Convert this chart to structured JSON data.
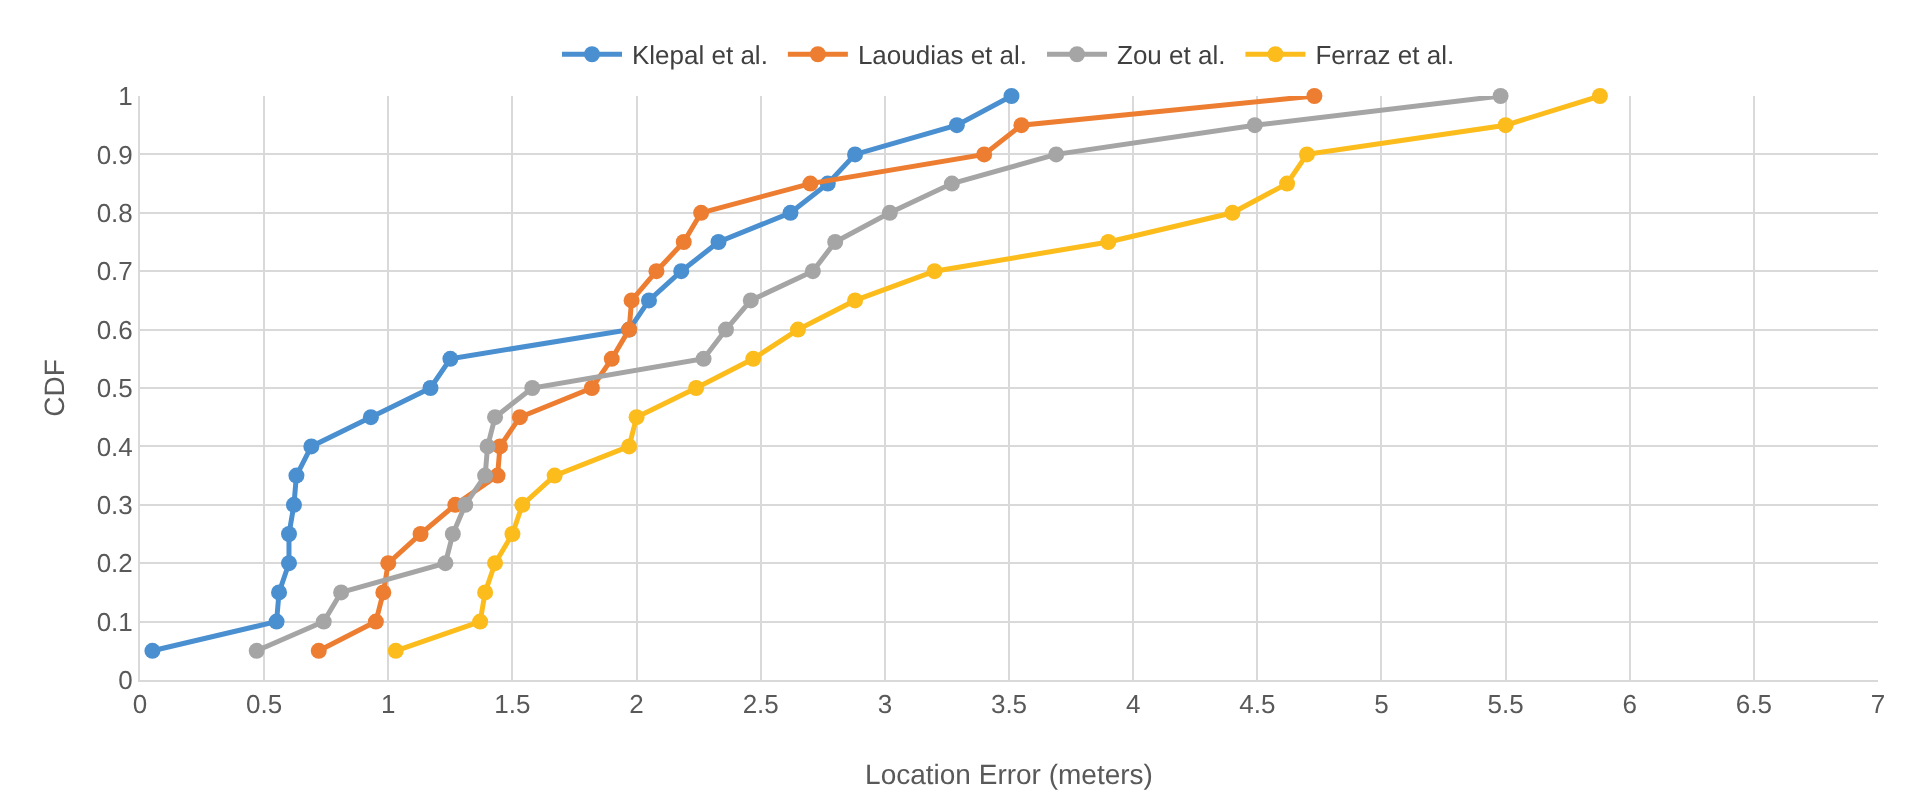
{
  "chart_data": {
    "type": "line",
    "xlabel": "Location Error (meters)",
    "ylabel": "CDF",
    "xlim": [
      0,
      7
    ],
    "xticks": [
      0,
      0.5,
      1,
      1.5,
      2,
      2.5,
      3,
      3.5,
      4,
      4.5,
      5,
      5.5,
      6,
      6.5,
      7
    ],
    "ylim": [
      0,
      1
    ],
    "yticks": [
      0,
      0.1,
      0.2,
      0.3,
      0.4,
      0.5,
      0.6,
      0.7,
      0.8,
      0.9,
      1
    ],
    "grid": true,
    "legend": "top",
    "marker": "circle",
    "line_style": "solid",
    "series": [
      {
        "name": "Klepal et al.",
        "color": "#4a8fd0",
        "x": [
          0.05,
          0.55,
          0.56,
          0.6,
          0.6,
          0.62,
          0.63,
          0.69,
          0.93,
          1.17,
          1.25,
          1.97,
          2.05,
          2.18,
          2.33,
          2.62,
          2.77,
          2.88,
          3.29,
          3.51
        ],
        "values": [
          0.05,
          0.1,
          0.15,
          0.2,
          0.25,
          0.3,
          0.35,
          0.4,
          0.45,
          0.5,
          0.55,
          0.6,
          0.65,
          0.7,
          0.75,
          0.8,
          0.85,
          0.9,
          0.95,
          1
        ]
      },
      {
        "name": "Laoudias et al.",
        "color": "#ed7d31",
        "x": [
          0.72,
          0.95,
          0.98,
          1.0,
          1.13,
          1.27,
          1.44,
          1.45,
          1.53,
          1.82,
          1.9,
          1.97,
          1.98,
          2.08,
          2.19,
          2.26,
          2.7,
          3.4,
          3.55,
          4.73
        ],
        "values": [
          0.05,
          0.1,
          0.15,
          0.2,
          0.25,
          0.3,
          0.35,
          0.4,
          0.45,
          0.5,
          0.55,
          0.6,
          0.65,
          0.7,
          0.75,
          0.8,
          0.85,
          0.9,
          0.95,
          1
        ]
      },
      {
        "name": "Zou et al.",
        "color": "#a5a5a5",
        "x": [
          0.47,
          0.74,
          0.81,
          1.23,
          1.26,
          1.31,
          1.39,
          1.4,
          1.43,
          1.58,
          2.27,
          2.36,
          2.46,
          2.71,
          2.8,
          3.02,
          3.27,
          3.69,
          4.49,
          5.48
        ],
        "values": [
          0.05,
          0.1,
          0.15,
          0.2,
          0.25,
          0.3,
          0.35,
          0.4,
          0.45,
          0.5,
          0.55,
          0.6,
          0.65,
          0.7,
          0.75,
          0.8,
          0.85,
          0.9,
          0.95,
          1
        ]
      },
      {
        "name": "Ferraz et al.",
        "color": "#fbbc1c",
        "x": [
          1.03,
          1.37,
          1.39,
          1.43,
          1.5,
          1.54,
          1.67,
          1.97,
          2.0,
          2.24,
          2.47,
          2.65,
          2.88,
          3.2,
          3.9,
          4.4,
          4.62,
          4.7,
          5.5,
          5.88
        ],
        "values": [
          0.05,
          0.1,
          0.15,
          0.2,
          0.25,
          0.3,
          0.35,
          0.4,
          0.45,
          0.5,
          0.55,
          0.6,
          0.65,
          0.7,
          0.75,
          0.8,
          0.85,
          0.9,
          0.95,
          1
        ]
      }
    ]
  }
}
